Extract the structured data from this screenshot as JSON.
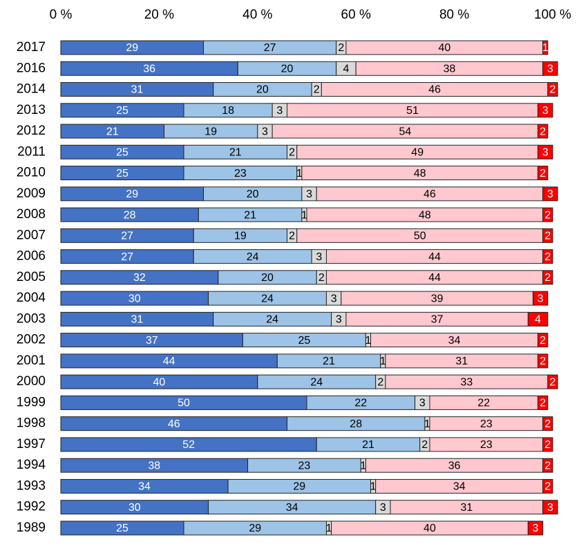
{
  "chart_data": {
    "type": "stacked-bar-horizontal",
    "categories": [
      "2017",
      "2016",
      "2014",
      "2013",
      "2012",
      "2011",
      "2010",
      "2009",
      "2008",
      "2007",
      "2006",
      "2005",
      "2004",
      "2003",
      "2002",
      "2001",
      "2000",
      "1999",
      "1998",
      "1997",
      "1994",
      "1993",
      "1992",
      "1989"
    ],
    "series": [
      {
        "color": "#4472c4",
        "values": [
          29,
          36,
          31,
          25,
          21,
          25,
          25,
          29,
          28,
          27,
          27,
          32,
          30,
          31,
          37,
          44,
          40,
          50,
          46,
          52,
          38,
          34,
          30,
          25
        ]
      },
      {
        "color": "#9dc3e6",
        "values": [
          27,
          20,
          20,
          18,
          19,
          21,
          23,
          20,
          21,
          19,
          24,
          20,
          24,
          24,
          25,
          21,
          24,
          22,
          28,
          21,
          23,
          29,
          34,
          29
        ]
      },
      {
        "color": "#d9d9d9",
        "values": [
          2,
          4,
          2,
          3,
          3,
          2,
          1,
          3,
          1,
          2,
          3,
          2,
          3,
          3,
          1,
          1,
          2,
          3,
          1,
          2,
          1,
          1,
          3,
          1
        ]
      },
      {
        "color": "#ffc7ce",
        "values": [
          40,
          38,
          46,
          51,
          54,
          49,
          48,
          46,
          48,
          50,
          44,
          44,
          39,
          37,
          34,
          31,
          33,
          22,
          23,
          23,
          36,
          34,
          31,
          40
        ]
      },
      {
        "color": "#ff0000",
        "values": [
          1,
          3,
          2,
          3,
          2,
          3,
          2,
          3,
          2,
          2,
          2,
          2,
          3,
          4,
          2,
          2,
          2,
          2,
          2,
          2,
          2,
          2,
          3,
          3
        ]
      }
    ],
    "xlim": [
      0,
      100
    ],
    "xticks": [
      {
        "value": 0,
        "label": "0 %"
      },
      {
        "value": 20,
        "label": "20 %"
      },
      {
        "value": 40,
        "label": "40 %"
      },
      {
        "value": 60,
        "label": "60 %"
      },
      {
        "value": 80,
        "label": "80 %"
      },
      {
        "value": 100,
        "label": "100 %"
      }
    ],
    "grid": false
  }
}
